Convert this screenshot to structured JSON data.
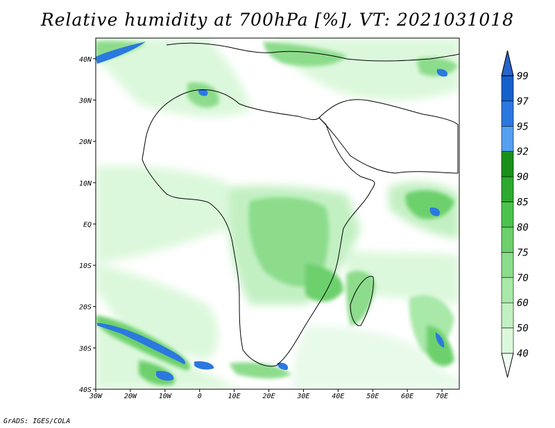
{
  "title": "Relative humidity at 700hPa [%], VT: 2021031018",
  "footer": "GrADS: IGES/COLA",
  "map": {
    "lon_range": [
      -30,
      75
    ],
    "lat_range": [
      -40,
      45
    ],
    "lon_ticks": [
      {
        "value": -30,
        "label": "30W"
      },
      {
        "value": -20,
        "label": "20W"
      },
      {
        "value": -10,
        "label": "10W"
      },
      {
        "value": 0,
        "label": "0"
      },
      {
        "value": 10,
        "label": "10E"
      },
      {
        "value": 20,
        "label": "20E"
      },
      {
        "value": 30,
        "label": "30E"
      },
      {
        "value": 40,
        "label": "40E"
      },
      {
        "value": 50,
        "label": "50E"
      },
      {
        "value": 60,
        "label": "60E"
      },
      {
        "value": 70,
        "label": "70E"
      }
    ],
    "lat_ticks": [
      {
        "value": 40,
        "label": "40N"
      },
      {
        "value": 30,
        "label": "30N"
      },
      {
        "value": 20,
        "label": "20N"
      },
      {
        "value": 10,
        "label": "10N"
      },
      {
        "value": 0,
        "label": "EQ"
      },
      {
        "value": -10,
        "label": "10S"
      },
      {
        "value": -20,
        "label": "20S"
      },
      {
        "value": -30,
        "label": "30S"
      },
      {
        "value": -40,
        "label": "40S"
      }
    ]
  },
  "colorbar": {
    "levels": [
      "40",
      "50",
      "60",
      "70",
      "75",
      "80",
      "85",
      "90",
      "92",
      "95",
      "97",
      "99"
    ],
    "colors": [
      "#f0fcf0",
      "#dcf8dc",
      "#c3f0c3",
      "#a8e8a8",
      "#8cdc8c",
      "#6cd06c",
      "#4cc34c",
      "#2daa2d",
      "#1a901a",
      "#55a0f0",
      "#2b78e0",
      "#1660cc",
      "#2a64c8"
    ]
  }
}
